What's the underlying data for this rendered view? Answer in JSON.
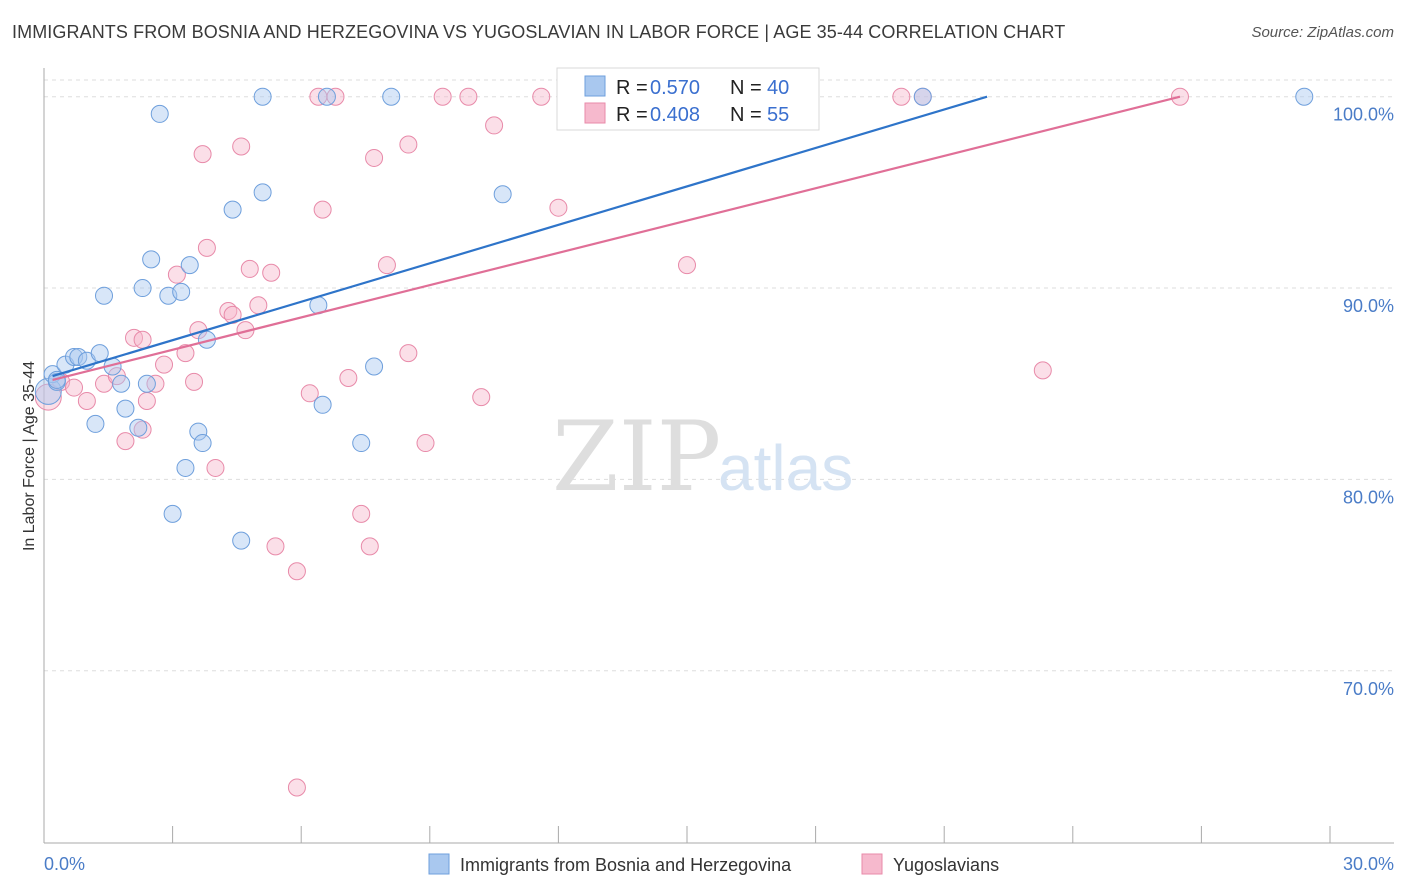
{
  "title": "IMMIGRANTS FROM BOSNIA AND HERZEGOVINA VS YUGOSLAVIAN IN LABOR FORCE | AGE 35-44 CORRELATION CHART",
  "source": "Source: ZipAtlas.com",
  "watermark": {
    "zip": "ZIP",
    "atlas": "atlas"
  },
  "colors": {
    "blue_fill": "#a9c8ef",
    "blue_stroke": "#6e9fdc",
    "blue_line": "#2e74c9",
    "pink_fill": "#f6b9cd",
    "pink_stroke": "#e88aa9",
    "pink_line": "#e06f97",
    "tick_text": "#4a7cc7",
    "grid": "#dddddd"
  },
  "chart_data": {
    "type": "scatter",
    "title": "IMMIGRANTS FROM BOSNIA AND HERZEGOVINA VS YUGOSLAVIAN IN LABOR FORCE | AGE 35-44 CORRELATION CHART",
    "xlabel": "",
    "ylabel": "In Labor Force | Age 35-44",
    "xlim": [
      0,
      30
    ],
    "ylim": [
      61,
      101.5
    ],
    "x_tick_labels": [
      {
        "value": 0,
        "label": "0.0%"
      },
      {
        "value": 30,
        "label": "30.0%"
      }
    ],
    "y_ticks": [
      {
        "value": 70,
        "label": "70.0%"
      },
      {
        "value": 80,
        "label": "80.0%"
      },
      {
        "value": 90,
        "label": "90.0%"
      },
      {
        "value": 100,
        "label": "100.0%"
      }
    ],
    "grid": true,
    "legend_position": "top-center",
    "legend": [
      {
        "series": "Immigrants from Bosnia and Herzegovina",
        "r_label": "R =",
        "r_value": "0.570",
        "n_label": "N =",
        "n_value": "40"
      },
      {
        "series": "Yugoslavians",
        "r_label": "R =",
        "r_value": "0.408",
        "n_label": "N =",
        "n_value": "55"
      }
    ],
    "series": [
      {
        "name": "Immigrants from Bosnia and Herzegovina",
        "color": "#a9c8ef",
        "trend": {
          "x": [
            0.2,
            22.0
          ],
          "y": [
            85.4,
            100.0
          ]
        },
        "points": [
          [
            0.1,
            84.6
          ],
          [
            0.2,
            85.5
          ],
          [
            0.3,
            85.1
          ],
          [
            0.5,
            86.0
          ],
          [
            0.7,
            86.4
          ],
          [
            0.8,
            86.4
          ],
          [
            1.0,
            86.2
          ],
          [
            1.3,
            86.6
          ],
          [
            1.6,
            85.9
          ],
          [
            1.8,
            85.0
          ],
          [
            2.4,
            85.0
          ],
          [
            1.2,
            82.9
          ],
          [
            1.9,
            83.7
          ],
          [
            2.2,
            82.7
          ],
          [
            1.4,
            89.6
          ],
          [
            2.3,
            90.0
          ],
          [
            2.5,
            91.5
          ],
          [
            2.9,
            89.6
          ],
          [
            3.2,
            89.8
          ],
          [
            3.4,
            91.2
          ],
          [
            3.8,
            87.3
          ],
          [
            3.6,
            82.5
          ],
          [
            3.7,
            81.9
          ],
          [
            3.3,
            80.6
          ],
          [
            3.0,
            78.2
          ],
          [
            4.4,
            94.1
          ],
          [
            4.6,
            76.8
          ],
          [
            5.1,
            100.0
          ],
          [
            5.1,
            95.0
          ],
          [
            6.4,
            89.1
          ],
          [
            6.5,
            83.9
          ],
          [
            6.6,
            100.0
          ],
          [
            7.4,
            81.9
          ],
          [
            7.7,
            85.9
          ],
          [
            8.1,
            100.0
          ],
          [
            10.7,
            94.9
          ],
          [
            2.7,
            99.1
          ],
          [
            20.5,
            100.0
          ],
          [
            29.4,
            100.0
          ],
          [
            0.3,
            85.2
          ]
        ]
      },
      {
        "name": "Yugoslavians",
        "color": "#f6b9cd",
        "trend": {
          "x": [
            0.2,
            26.5
          ],
          "y": [
            85.2,
            100.0
          ]
        },
        "points": [
          [
            0.1,
            84.3
          ],
          [
            0.4,
            85.1
          ],
          [
            0.7,
            84.8
          ],
          [
            1.0,
            84.1
          ],
          [
            1.4,
            85.0
          ],
          [
            1.7,
            85.4
          ],
          [
            1.9,
            82.0
          ],
          [
            2.3,
            82.6
          ],
          [
            2.1,
            87.4
          ],
          [
            2.3,
            87.3
          ],
          [
            2.6,
            85.0
          ],
          [
            2.8,
            86.0
          ],
          [
            3.1,
            90.7
          ],
          [
            3.3,
            86.6
          ],
          [
            3.5,
            85.1
          ],
          [
            3.6,
            87.8
          ],
          [
            3.7,
            97.0
          ],
          [
            3.8,
            92.1
          ],
          [
            4.0,
            80.6
          ],
          [
            4.3,
            88.8
          ],
          [
            4.6,
            97.4
          ],
          [
            4.7,
            87.8
          ],
          [
            4.8,
            91.0
          ],
          [
            5.0,
            89.1
          ],
          [
            5.3,
            90.8
          ],
          [
            5.4,
            76.5
          ],
          [
            5.9,
            75.2
          ],
          [
            5.9,
            63.9
          ],
          [
            6.4,
            100.0
          ],
          [
            6.5,
            94.1
          ],
          [
            6.8,
            100.0
          ],
          [
            7.1,
            85.3
          ],
          [
            7.4,
            78.2
          ],
          [
            7.6,
            76.5
          ],
          [
            7.7,
            96.8
          ],
          [
            8.0,
            91.2
          ],
          [
            8.5,
            86.6
          ],
          [
            8.5,
            97.5
          ],
          [
            8.9,
            81.9
          ],
          [
            9.3,
            100.0
          ],
          [
            9.9,
            100.0
          ],
          [
            10.5,
            98.5
          ],
          [
            11.6,
            100.0
          ],
          [
            12.0,
            94.2
          ],
          [
            12.3,
            100.0
          ],
          [
            15.0,
            91.2
          ],
          [
            15.7,
            100.0
          ],
          [
            20.0,
            100.0
          ],
          [
            20.5,
            100.0
          ],
          [
            23.3,
            85.7
          ],
          [
            26.5,
            100.0
          ],
          [
            4.4,
            88.6
          ],
          [
            2.4,
            84.1
          ],
          [
            6.2,
            84.5
          ],
          [
            10.2,
            84.3
          ]
        ]
      }
    ]
  },
  "bottom_legend": {
    "item1": "Immigrants from Bosnia and Herzegovina",
    "item2": "Yugoslavians"
  }
}
